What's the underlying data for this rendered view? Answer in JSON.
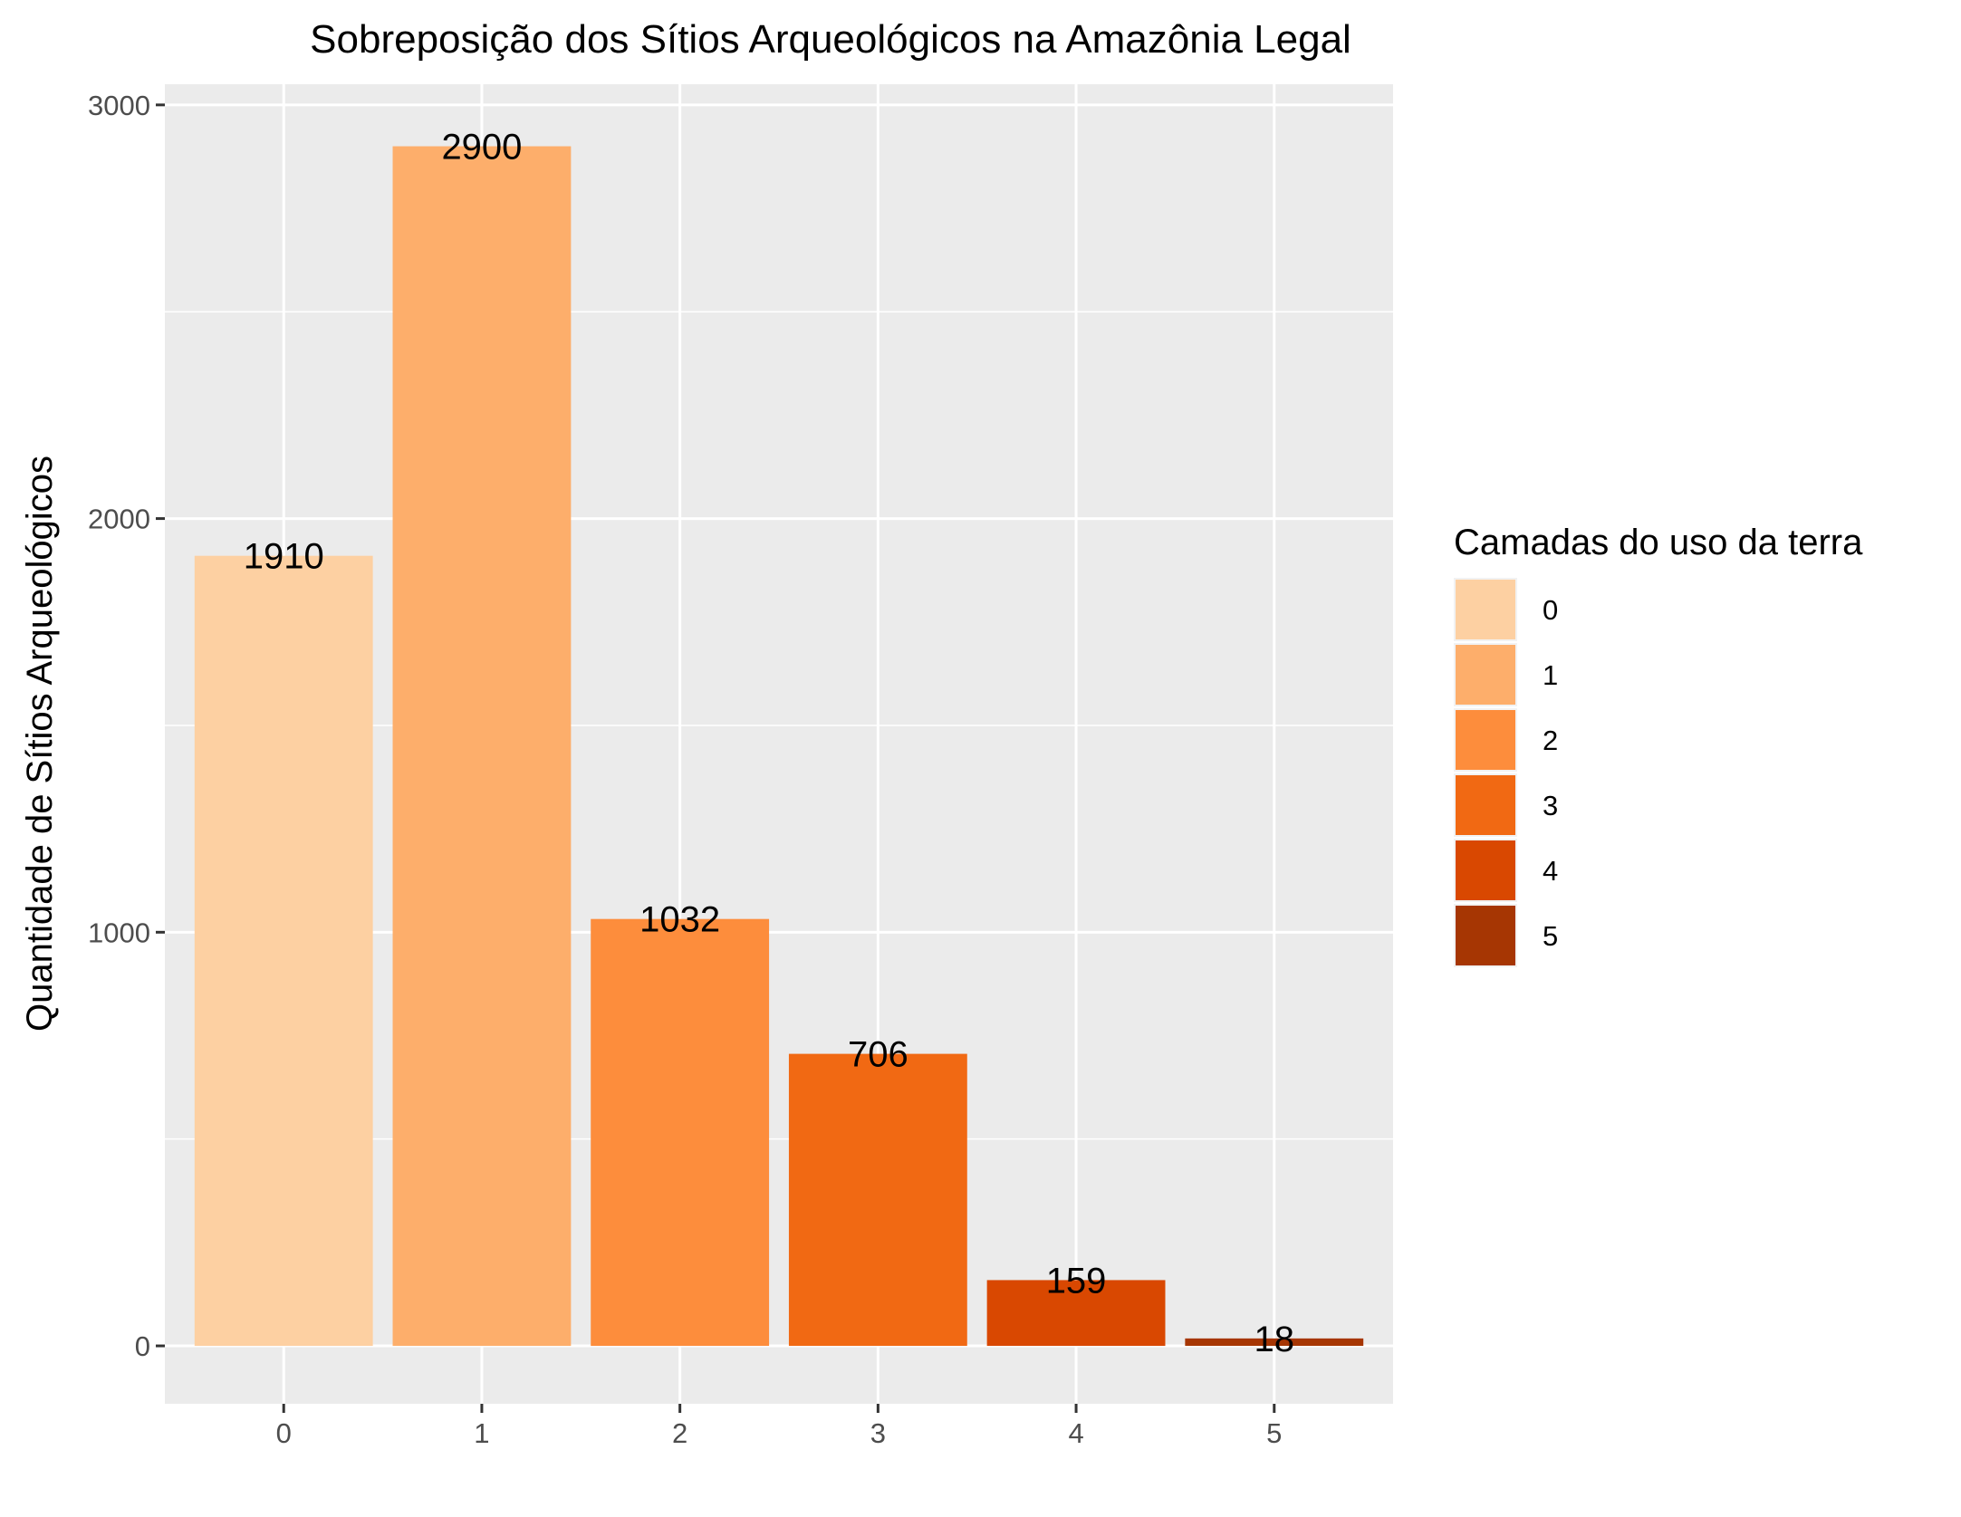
{
  "chart_data": {
    "type": "bar",
    "title": "Sobreposição dos Sítios Arqueológicos na Amazônia Legal",
    "xlabel": "",
    "ylabel": "Quantidade de Sítios Arqueológicos",
    "categories": [
      "0",
      "1",
      "2",
      "3",
      "4",
      "5"
    ],
    "values": [
      1910,
      2900,
      1032,
      706,
      159,
      18
    ],
    "data_labels": [
      "1910",
      "2900",
      "1032",
      "706",
      "159",
      "18"
    ],
    "colors": [
      "#FDD0A2",
      "#FDAE6B",
      "#FD8D3C",
      "#F16913",
      "#D94801",
      "#A63603"
    ],
    "ylim": [
      -140,
      3050
    ],
    "yticks": [
      0,
      1000,
      2000,
      3000
    ],
    "ytick_labels": [
      "0",
      "1000",
      "2000",
      "3000"
    ],
    "yminor": [
      500,
      1500,
      2500
    ],
    "panel_background": "#EBEBEB",
    "grid": true,
    "legend": {
      "title": "Camadas do uso da terra",
      "position": "right",
      "entries": [
        "0",
        "1",
        "2",
        "3",
        "4",
        "5"
      ]
    }
  }
}
